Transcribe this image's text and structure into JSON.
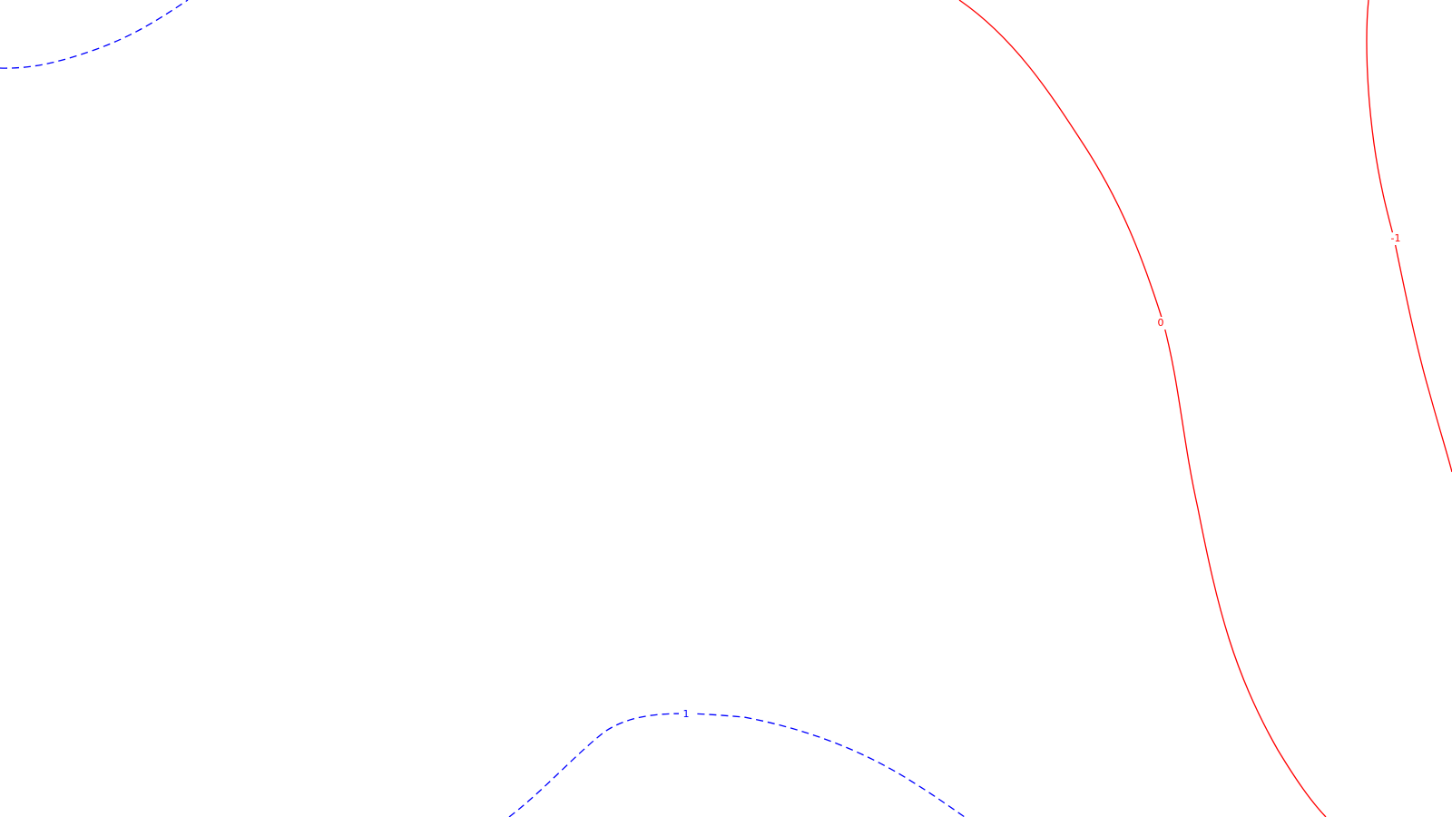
{
  "chart_data": {
    "type": "contour",
    "grid": false,
    "colors": {
      "positive": "#0000ff",
      "zero_or_negative": "#ff0000",
      "background": "#ffffff"
    },
    "contours": [
      {
        "id": "upper-left-positive",
        "level": 1,
        "label": "",
        "color": "#0000ff",
        "dashed": true
      },
      {
        "id": "bottom-positive",
        "level": 1,
        "label": "1",
        "color": "#0000ff",
        "dashed": true
      },
      {
        "id": "zero-line",
        "level": 0,
        "label": "0",
        "color": "#ff0000",
        "dashed": false
      },
      {
        "id": "negative-line",
        "level": -1,
        "label": "-1",
        "color": "#ff0000",
        "dashed": false
      }
    ]
  }
}
